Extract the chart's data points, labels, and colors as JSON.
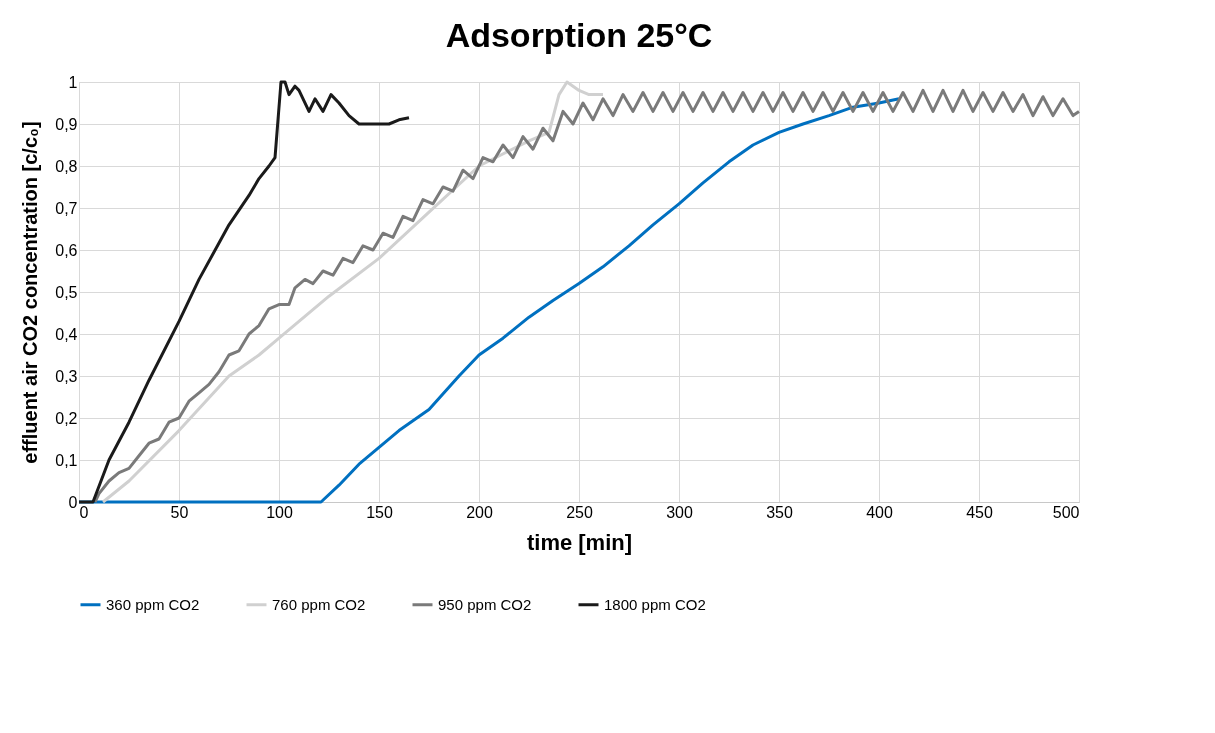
{
  "chart_data": {
    "type": "line",
    "title": "Adsorption 25°C",
    "xlabel": "time [min]",
    "ylabel": "effluent air CO2 concentration [c/c₀]",
    "xlim": [
      0,
      500
    ],
    "xticks": [
      0,
      50,
      100,
      150,
      200,
      250,
      300,
      350,
      400,
      450,
      500
    ],
    "ylim": [
      0,
      1
    ],
    "yticks": [
      0,
      {
        "value": 0.1,
        "label": "0,1"
      },
      {
        "value": 0.2,
        "label": "0,2"
      },
      {
        "value": 0.3,
        "label": "0,3"
      },
      {
        "value": 0.4,
        "label": "0,4"
      },
      {
        "value": 0.5,
        "label": "0,5"
      },
      {
        "value": 0.6,
        "label": "0,6"
      },
      {
        "value": 0.7,
        "label": "0,7"
      },
      {
        "value": 0.8,
        "label": "0,8"
      },
      {
        "value": 0.9,
        "label": "0,9"
      },
      1
    ],
    "grid": true,
    "legend": "bottom",
    "line_style": "solid",
    "marker": "none",
    "series": [
      {
        "name": "360 ppm CO2",
        "color": "#0070c0",
        "x": [
          0,
          121,
          130,
          140,
          150,
          160,
          175,
          190,
          200,
          212,
          225,
          237,
          250,
          262,
          275,
          287,
          300,
          312,
          325,
          337,
          350,
          362,
          375,
          387,
          400,
          410
        ],
        "values": [
          0,
          0,
          0.04,
          0.09,
          0.13,
          0.17,
          0.22,
          0.3,
          0.35,
          0.39,
          0.44,
          0.48,
          0.52,
          0.56,
          0.61,
          0.66,
          0.71,
          0.76,
          0.81,
          0.85,
          0.88,
          0.9,
          0.92,
          0.94,
          0.95,
          0.96
        ]
      },
      {
        "name": "760 ppm CO2",
        "color": "#d0d0d0",
        "x": [
          12,
          25,
          50,
          75,
          90,
          100,
          125,
          150,
          175,
          200,
          225,
          235,
          240,
          244,
          250,
          255,
          262
        ],
        "values": [
          0,
          0.05,
          0.17,
          0.3,
          0.35,
          0.39,
          0.49,
          0.58,
          0.69,
          0.8,
          0.86,
          0.88,
          0.97,
          1.0,
          0.98,
          0.97,
          0.97
        ]
      },
      {
        "name": "950 ppm CO2",
        "color": "#7a7a7a",
        "x": [
          8,
          10,
          15,
          20,
          25,
          30,
          35,
          40,
          45,
          50,
          55,
          60,
          65,
          70,
          75,
          80,
          85,
          90,
          95,
          100,
          105,
          108,
          113,
          117,
          122,
          127,
          132,
          137,
          142,
          147,
          152,
          157,
          162,
          167,
          172,
          177,
          182,
          187,
          192,
          197,
          202,
          207,
          212,
          217,
          222,
          227,
          232,
          237,
          242,
          247,
          252,
          257,
          262,
          267,
          272,
          277,
          282,
          287,
          292,
          297,
          302,
          307,
          312,
          317,
          322,
          327,
          332,
          337,
          342,
          347,
          352,
          357,
          362,
          367,
          372,
          377,
          382,
          387,
          392,
          397,
          402,
          407,
          412,
          417,
          422,
          427,
          432,
          437,
          442,
          447,
          452,
          457,
          462,
          467,
          472,
          477,
          482,
          487,
          492,
          497,
          500
        ],
        "values": [
          0,
          0.02,
          0.05,
          0.07,
          0.08,
          0.11,
          0.14,
          0.15,
          0.19,
          0.2,
          0.24,
          0.26,
          0.28,
          0.31,
          0.35,
          0.36,
          0.4,
          0.42,
          0.46,
          0.47,
          0.47,
          0.51,
          0.53,
          0.52,
          0.55,
          0.54,
          0.58,
          0.57,
          0.61,
          0.6,
          0.64,
          0.63,
          0.68,
          0.67,
          0.72,
          0.71,
          0.75,
          0.74,
          0.79,
          0.77,
          0.82,
          0.81,
          0.85,
          0.82,
          0.87,
          0.84,
          0.89,
          0.86,
          0.93,
          0.9,
          0.95,
          0.91,
          0.96,
          0.92,
          0.97,
          0.93,
          0.975,
          0.93,
          0.975,
          0.93,
          0.975,
          0.93,
          0.975,
          0.93,
          0.975,
          0.93,
          0.975,
          0.93,
          0.975,
          0.93,
          0.975,
          0.93,
          0.975,
          0.93,
          0.975,
          0.93,
          0.975,
          0.93,
          0.975,
          0.93,
          0.975,
          0.93,
          0.975,
          0.93,
          0.98,
          0.93,
          0.98,
          0.93,
          0.98,
          0.93,
          0.975,
          0.93,
          0.975,
          0.93,
          0.97,
          0.92,
          0.965,
          0.92,
          0.96,
          0.92,
          0.93
        ]
      },
      {
        "name": "1800 ppm CO2",
        "color": "#1a1a1a",
        "x": [
          0,
          7,
          15,
          25,
          35,
          50,
          60,
          75,
          85,
          90,
          95,
          98,
          101,
          103,
          105,
          108,
          110,
          115,
          118,
          122,
          126,
          130,
          135,
          140,
          145,
          150,
          155,
          160,
          165
        ],
        "values": [
          0,
          0,
          0.1,
          0.19,
          0.29,
          0.43,
          0.53,
          0.66,
          0.73,
          0.77,
          0.8,
          0.82,
          1.0,
          1.0,
          0.97,
          0.99,
          0.98,
          0.93,
          0.96,
          0.93,
          0.97,
          0.95,
          0.92,
          0.9,
          0.9,
          0.9,
          0.9,
          0.91,
          0.915
        ]
      }
    ]
  }
}
